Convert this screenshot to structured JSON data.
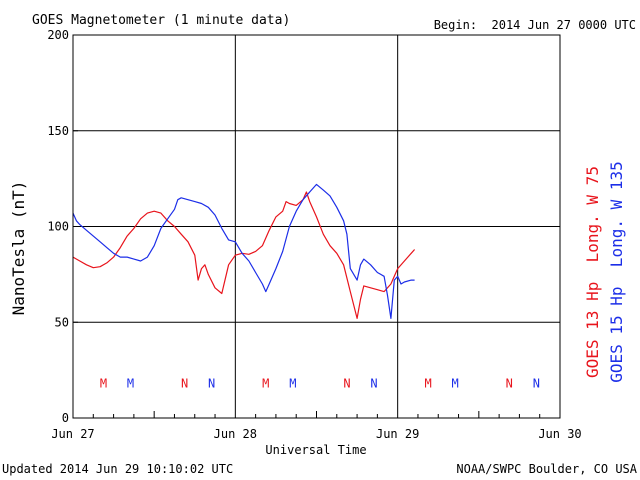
{
  "chart_data": {
    "type": "line",
    "title": "GOES Magnetometer (1 minute data)",
    "begin": "Begin:  2014 Jun 27 0000 UTC",
    "xlabel": "Universal Time",
    "ylabel": "NanoTesla (nT)",
    "x_ticks": [
      "Jun 27",
      "Jun 28",
      "Jun 29",
      "Jun 30"
    ],
    "xlim": [
      0,
      72
    ],
    "ylim": [
      0,
      200
    ],
    "y_ticks": [
      0,
      50,
      100,
      150,
      200
    ],
    "grid": true,
    "footer_left": "Updated 2014 Jun 29 10:10:02 UTC",
    "footer_right": "NOAA/SWPC Boulder, CO USA",
    "series": [
      {
        "name": "GOES 13 Hp  Long. W 75",
        "color": "#e8141c",
        "points": [
          [
            0,
            84
          ],
          [
            1,
            82
          ],
          [
            2,
            80
          ],
          [
            3,
            78.5
          ],
          [
            4,
            79
          ],
          [
            5,
            81
          ],
          [
            6,
            84
          ],
          [
            7,
            89
          ],
          [
            8,
            95
          ],
          [
            9,
            99
          ],
          [
            10,
            104
          ],
          [
            11,
            107
          ],
          [
            12,
            108
          ],
          [
            13,
            107
          ],
          [
            14,
            103
          ],
          [
            15,
            100
          ],
          [
            16,
            96
          ],
          [
            17,
            92
          ],
          [
            18,
            85
          ],
          [
            18.5,
            72
          ],
          [
            19,
            78
          ],
          [
            19.5,
            80
          ],
          [
            20,
            75
          ],
          [
            21,
            68
          ],
          [
            22,
            65
          ],
          [
            23,
            80
          ],
          [
            24,
            85
          ],
          [
            25,
            86
          ],
          [
            26,
            85.5
          ],
          [
            27,
            87
          ],
          [
            28,
            90
          ],
          [
            29,
            98
          ],
          [
            30,
            105
          ],
          [
            31,
            108
          ],
          [
            31.5,
            113
          ],
          [
            32,
            112
          ],
          [
            33,
            111
          ],
          [
            34,
            114
          ],
          [
            34.5,
            118
          ],
          [
            35,
            113
          ],
          [
            36,
            105
          ],
          [
            37,
            96
          ],
          [
            38,
            90
          ],
          [
            39,
            86
          ],
          [
            40,
            80
          ],
          [
            41,
            66
          ],
          [
            42,
            52
          ],
          [
            42.5,
            62
          ],
          [
            43,
            69
          ],
          [
            44,
            68
          ],
          [
            45,
            67
          ],
          [
            46,
            66
          ],
          [
            47,
            70
          ],
          [
            47.5,
            74
          ],
          [
            48,
            78
          ],
          [
            49,
            82
          ],
          [
            50,
            86
          ],
          [
            50.5,
            88
          ]
        ]
      },
      {
        "name": "GOES 15 Hp  Long. W 135",
        "color": "#1c2ee8",
        "points": [
          [
            0,
            107
          ],
          [
            0.5,
            103
          ],
          [
            1,
            101
          ],
          [
            2,
            98
          ],
          [
            3,
            95
          ],
          [
            4,
            92
          ],
          [
            5,
            89
          ],
          [
            6,
            86
          ],
          [
            7,
            84
          ],
          [
            8,
            84
          ],
          [
            9,
            83
          ],
          [
            10,
            82
          ],
          [
            11,
            84
          ],
          [
            12,
            90
          ],
          [
            13,
            99
          ],
          [
            14,
            104
          ],
          [
            15,
            109
          ],
          [
            15.5,
            114
          ],
          [
            16,
            115
          ],
          [
            17,
            114
          ],
          [
            18,
            113
          ],
          [
            19,
            112
          ],
          [
            20,
            110
          ],
          [
            21,
            106
          ],
          [
            22,
            99
          ],
          [
            23,
            93
          ],
          [
            24,
            92
          ],
          [
            25,
            86
          ],
          [
            26,
            82
          ],
          [
            27,
            76
          ],
          [
            28,
            70
          ],
          [
            28.5,
            66
          ],
          [
            29,
            70
          ],
          [
            30,
            78
          ],
          [
            31,
            87
          ],
          [
            32,
            100
          ],
          [
            33,
            108
          ],
          [
            34,
            114
          ],
          [
            35,
            118
          ],
          [
            36,
            122
          ],
          [
            37,
            119
          ],
          [
            38,
            116
          ],
          [
            39,
            110
          ],
          [
            40,
            103
          ],
          [
            40.5,
            96
          ],
          [
            41,
            78
          ],
          [
            42,
            72
          ],
          [
            42.5,
            80
          ],
          [
            43,
            83
          ],
          [
            44,
            80
          ],
          [
            45,
            76
          ],
          [
            46,
            74
          ],
          [
            46.5,
            64
          ],
          [
            47,
            52
          ],
          [
            47.5,
            72
          ],
          [
            48,
            74
          ],
          [
            48.5,
            70
          ],
          [
            49,
            71
          ],
          [
            50,
            72
          ],
          [
            50.5,
            72
          ]
        ]
      }
    ],
    "markers": [
      {
        "label": "M",
        "x": 4.5,
        "series": 0
      },
      {
        "label": "M",
        "x": 8.5,
        "series": 1
      },
      {
        "label": "N",
        "x": 16.5,
        "series": 0
      },
      {
        "label": "N",
        "x": 20.5,
        "series": 1
      },
      {
        "label": "M",
        "x": 28.5,
        "series": 0
      },
      {
        "label": "M",
        "x": 32.5,
        "series": 1
      },
      {
        "label": "N",
        "x": 40.5,
        "series": 0
      },
      {
        "label": "N",
        "x": 44.5,
        "series": 1
      },
      {
        "label": "M",
        "x": 52.5,
        "series": 0
      },
      {
        "label": "M",
        "x": 56.5,
        "series": 1
      },
      {
        "label": "N",
        "x": 64.5,
        "series": 0
      },
      {
        "label": "N",
        "x": 68.5,
        "series": 1
      }
    ],
    "marker_level": 16
  }
}
